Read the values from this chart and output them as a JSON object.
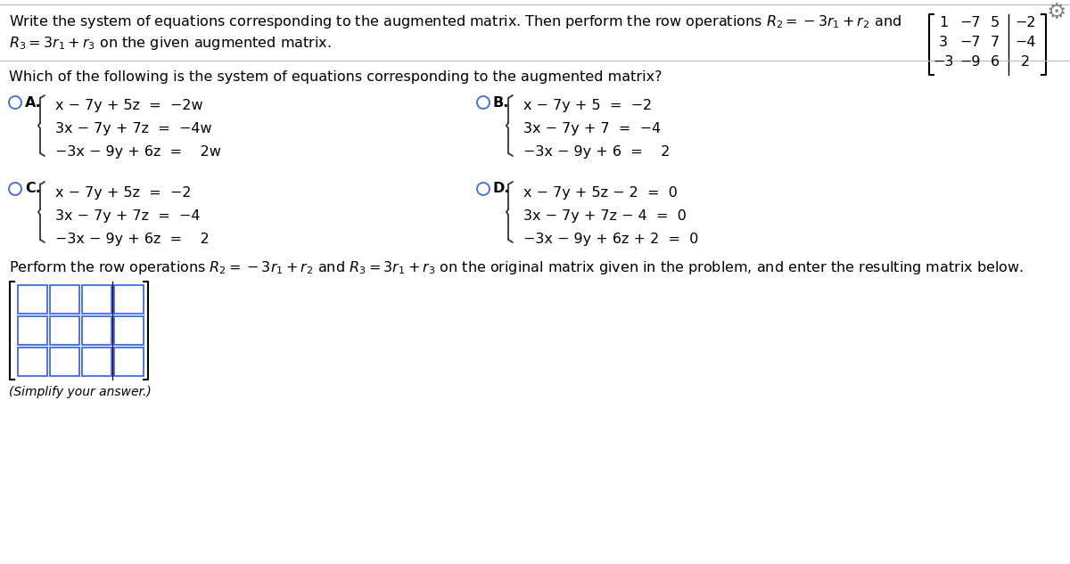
{
  "bg_color": "#ffffff",
  "text_color": "#000000",
  "matrix_rows": [
    [
      "1",
      "−7",
      "5",
      "−2"
    ],
    [
      "3",
      "−7",
      "7",
      "−4"
    ],
    [
      "−3",
      "−9",
      "6",
      "2"
    ]
  ],
  "option_A_lines": [
    "x − 7y + 5z  =  −2w",
    "3x − 7y + 7z  =  −4w",
    "−3x − 9y + 6z  =    2w"
  ],
  "option_B_lines": [
    "x − 7y + 5  =  −2",
    "3x − 7y + 7  =  −4",
    "−3x − 9y + 6  =    2"
  ],
  "option_C_lines": [
    "x − 7y + 5z  =  −2",
    "3x − 7y + 7z  =  −4",
    "−3x − 9y + 6z  =    2"
  ],
  "option_D_lines": [
    "x − 7y + 5z − 2  =  0",
    "3x − 7y + 7z − 4  =  0",
    "−3x − 9y + 6z + 2  =  0"
  ],
  "simplify_text": "(Simplify your answer.)",
  "circle_color": "#4169e1",
  "gear_color": "#888888",
  "line_color": "#cccccc",
  "box_color": "#4169e1",
  "brace_color": "#333333"
}
